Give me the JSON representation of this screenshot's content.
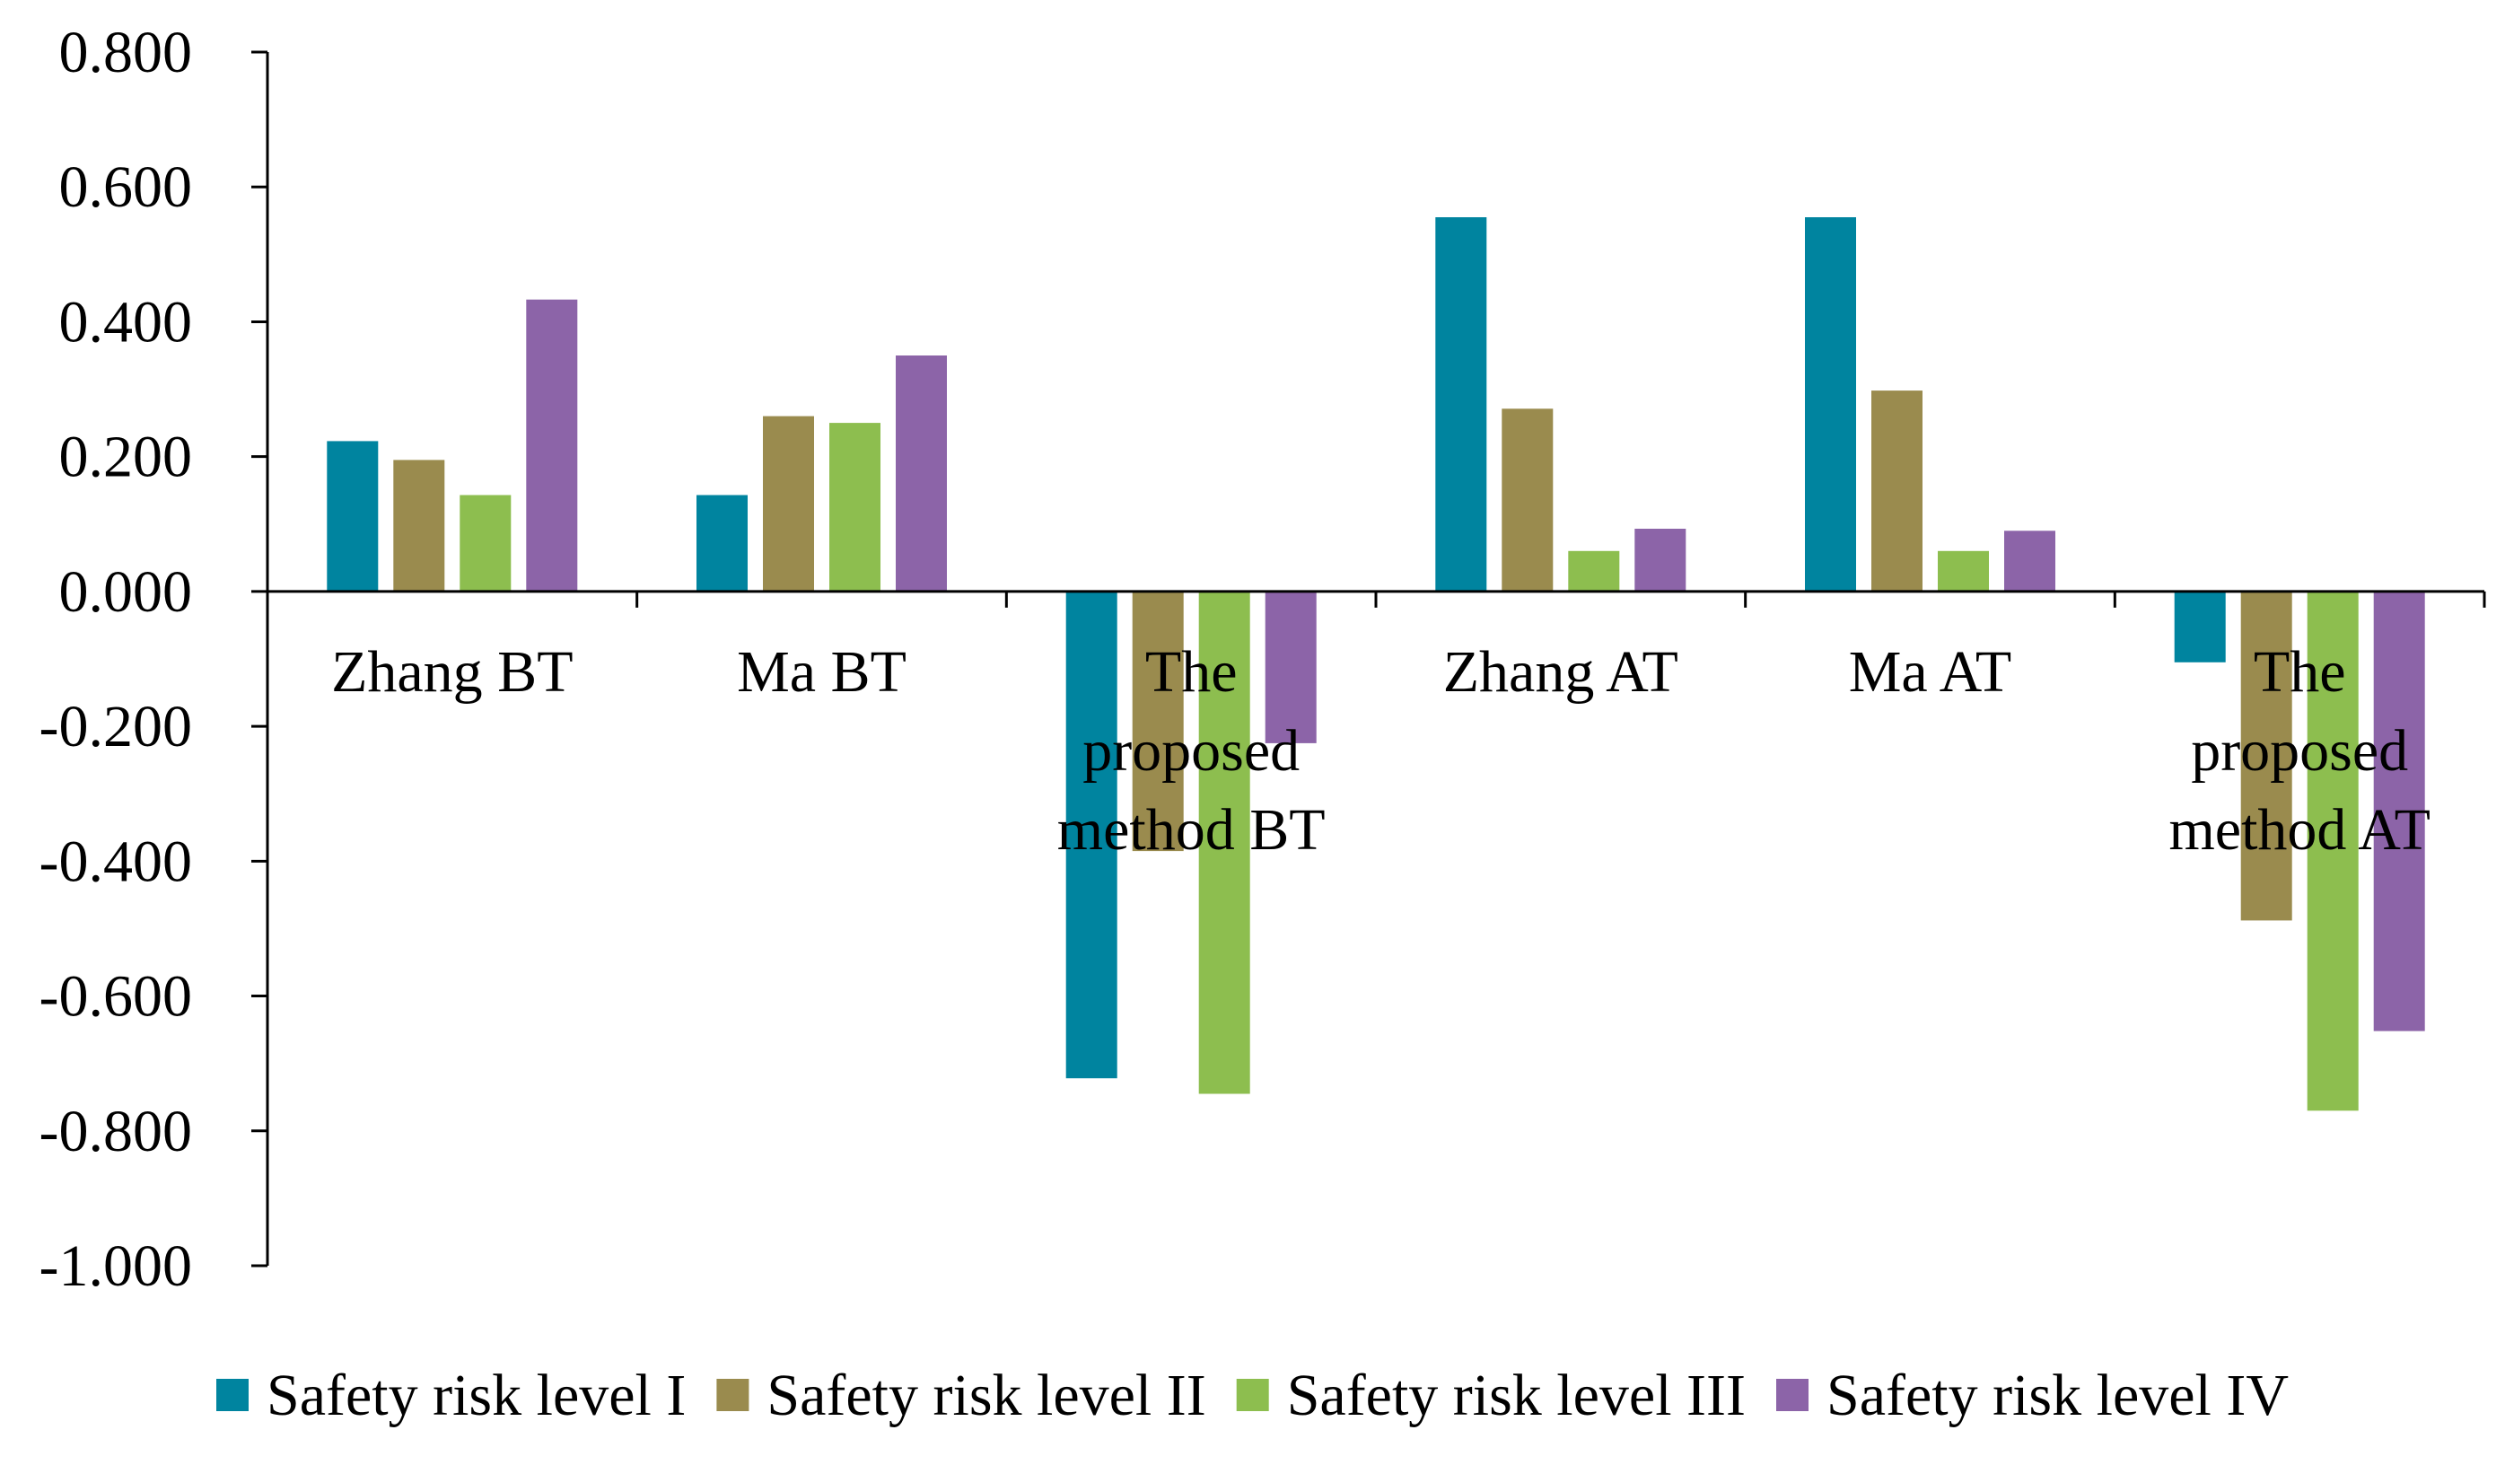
{
  "chart_data": {
    "type": "bar",
    "title": "",
    "xlabel": "",
    "ylabel": "",
    "ylim": [
      -1.0,
      0.8
    ],
    "yticks": [
      "0.800",
      "0.600",
      "0.400",
      "0.200",
      "0.000",
      "-0.200",
      "-0.400",
      "-0.600",
      "-0.800",
      "-1.000"
    ],
    "ytick_values": [
      0.8,
      0.6,
      0.4,
      0.2,
      0.0,
      -0.2,
      -0.4,
      -0.6,
      -0.8,
      -1.0
    ],
    "categories": [
      [
        "Zhang BT"
      ],
      [
        "Ma BT"
      ],
      [
        "The",
        "proposed",
        "method BT"
      ],
      [
        "Zhang AT"
      ],
      [
        "Ma AT"
      ],
      [
        "The",
        "proposed",
        "method AT"
      ]
    ],
    "series": [
      {
        "name": "Safety risk level I",
        "color": "#00849F",
        "values": [
          0.223,
          0.143,
          -0.722,
          0.555,
          0.555,
          -0.105
        ]
      },
      {
        "name": "Safety risk level II",
        "color": "#9A8B4E",
        "values": [
          0.195,
          0.26,
          -0.385,
          0.271,
          0.298,
          -0.488
        ]
      },
      {
        "name": "Safety risk level III",
        "color": "#8DBE4F",
        "values": [
          0.143,
          0.25,
          -0.745,
          0.06,
          0.06,
          -0.77
        ]
      },
      {
        "name": "Safety risk level IV",
        "color": "#8C64A8",
        "values": [
          0.433,
          0.35,
          -0.225,
          0.093,
          0.09,
          -0.652
        ]
      }
    ],
    "legend_position": "bottom",
    "grid": false
  }
}
